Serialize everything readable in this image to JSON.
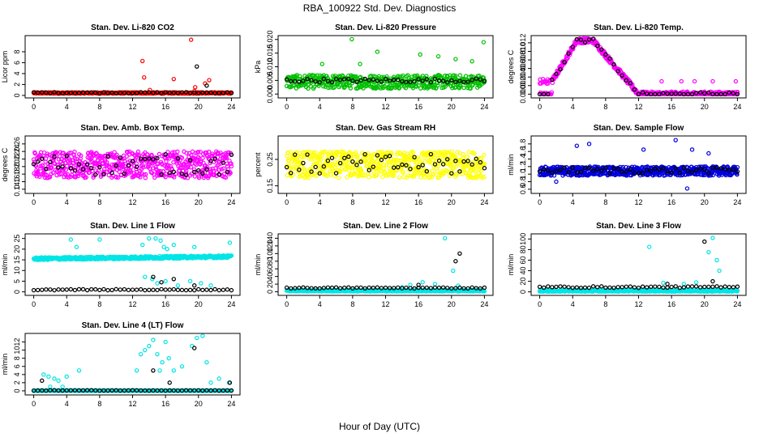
{
  "figure": {
    "title": "RBA_100922  Std. Dev. Diagnostics",
    "xlabel": "Hour of Day (UTC)"
  },
  "chart_data": [
    {
      "id": "co2",
      "type": "scatter",
      "title": "Stan. Dev. Li-820 CO2",
      "xlabel": "Hour of Day (UTC)",
      "ylabel": "Licor ppm",
      "xlim": [
        0,
        24
      ],
      "ylim": [
        0,
        10.5
      ],
      "xticks": [
        0,
        4,
        8,
        12,
        16,
        20,
        24
      ],
      "yticks": [
        0,
        2,
        4,
        6,
        8
      ],
      "ytick_labels": [
        "0",
        "2",
        "4",
        "6",
        "8"
      ],
      "series": [
        {
          "name": "detail",
          "color": "#ff0000",
          "kind": "cloud",
          "base": 0.45,
          "jitter": 0.12,
          "step": 0.05,
          "extra": [
            [
              13.2,
              6.3
            ],
            [
              13.4,
              3.3
            ],
            [
              17.0,
              3.0
            ],
            [
              19.1,
              10.2
            ],
            [
              19.6,
              1.5
            ],
            [
              19.5,
              0.8
            ],
            [
              20.8,
              2.2
            ],
            [
              21.3,
              2.8
            ],
            [
              14.1,
              1.0
            ]
          ]
        },
        {
          "name": "hourly",
          "color": "#000000",
          "kind": "line",
          "base": 0.5,
          "jitter": 0.1,
          "step": 0.5,
          "extra": [
            [
              19.8,
              5.3
            ],
            [
              21.0,
              1.8
            ]
          ]
        }
      ]
    },
    {
      "id": "pressure",
      "type": "scatter",
      "title": "Stan. Dev. Li-820 Pressure",
      "xlabel": "Hour of Day (UTC)",
      "ylabel": "kPa",
      "xlim": [
        0,
        24
      ],
      "ylim": [
        -0.0005,
        0.0205
      ],
      "xticks": [
        0,
        4,
        8,
        12,
        16,
        20,
        24
      ],
      "yticks": [
        0,
        0.005,
        0.01,
        0.015,
        0.02
      ],
      "ytick_labels": [
        "0.000",
        "0.005",
        "0.010",
        "0.015",
        "0.020"
      ],
      "series": [
        {
          "name": "detail",
          "color": "#00c000",
          "kind": "cloud",
          "base": 0.0045,
          "jitter": 0.0025,
          "step": 0.05,
          "extra": [
            [
              7.9,
              0.0201
            ],
            [
              23.9,
              0.019
            ],
            [
              11.0,
              0.0155
            ],
            [
              16.2,
              0.0145
            ],
            [
              18.4,
              0.0138
            ],
            [
              20.5,
              0.0128
            ],
            [
              22.5,
              0.012
            ],
            [
              8.9,
              0.011
            ],
            [
              4.3,
              0.011
            ]
          ]
        },
        {
          "name": "hourly",
          "color": "#000000",
          "kind": "line",
          "base": 0.005,
          "jitter": 0.0007,
          "step": 0.5,
          "extra": []
        }
      ]
    },
    {
      "id": "temp",
      "type": "scatter",
      "title": "Stan. Dev. Li-820 Temp.",
      "xlabel": "Hour of Day (UTC)",
      "ylabel": "degrees C",
      "xlim": [
        0,
        24
      ],
      "ylim": [
        -0.0003,
        0.0131
      ],
      "xticks": [
        0,
        4,
        8,
        12,
        16,
        20,
        24
      ],
      "yticks": [
        0,
        0.002,
        0.004,
        0.006,
        0.008,
        0.01,
        0.012
      ],
      "ytick_labels": [
        "0.000",
        "0.002",
        "0.004",
        "0.006",
        "0.008",
        "0.010",
        "0.012"
      ],
      "series": [
        {
          "name": "detail",
          "color": "#ff00ff",
          "kind": "temp",
          "base": 0.0,
          "jitter": 0.0006,
          "step": 0.05,
          "extra": [
            [
              14.8,
              0.003
            ],
            [
              17.2,
              0.003
            ],
            [
              18.8,
              0.003
            ],
            [
              21.0,
              0.003
            ],
            [
              23.8,
              0.003
            ]
          ]
        },
        {
          "name": "hourly",
          "color": "#000000",
          "kind": "temp",
          "base": 0.0,
          "jitter": 0.0004,
          "step": 0.5,
          "extra": []
        }
      ]
    },
    {
      "id": "ambbox",
      "type": "scatter",
      "title": "Stan. Dev. Amb. Box Temp.",
      "xlabel": "Hour of Day (UTC)",
      "ylabel": "degrees C",
      "xlim": [
        0,
        24
      ],
      "ylim": [
        0.135,
        0.275
      ],
      "xticks": [
        0,
        4,
        8,
        12,
        16,
        20,
        24
      ],
      "yticks": [
        0.14,
        0.16,
        0.18,
        0.2,
        0.22,
        0.24,
        0.26
      ],
      "ytick_labels": [
        "0.14",
        "0.16",
        "0.18",
        "0.20",
        "0.22",
        "0.24",
        "0.26"
      ],
      "series": [
        {
          "name": "detail",
          "color": "#ff00ff",
          "kind": "cloud",
          "base": 0.205,
          "jitter": 0.035,
          "step": 0.04,
          "extra": []
        },
        {
          "name": "hourly",
          "color": "#000000",
          "kind": "line",
          "base": 0.205,
          "jitter": 0.028,
          "step": 0.5,
          "extra": []
        }
      ]
    },
    {
      "id": "gasrh",
      "type": "scatter",
      "title": "Stan. Dev. Gas Stream RH",
      "xlabel": "Hour of Day (UTC)",
      "ylabel": "percent",
      "xlim": [
        0,
        24
      ],
      "ylim": [
        0.13,
        0.33
      ],
      "xticks": [
        0,
        4,
        8,
        12,
        16,
        20,
        24
      ],
      "yticks": [
        0.15,
        0.25
      ],
      "ytick_labels": [
        "0.15",
        "0.25"
      ],
      "series": [
        {
          "name": "detail",
          "color": "#ffff00",
          "kind": "cloud",
          "base": 0.23,
          "jitter": 0.05,
          "step": 0.04,
          "extra": []
        },
        {
          "name": "hourly",
          "color": "#000000",
          "kind": "line",
          "base": 0.23,
          "jitter": 0.04,
          "step": 0.5,
          "extra": []
        }
      ]
    },
    {
      "id": "sampleflow",
      "type": "scatter",
      "title": "Stan. Dev. Sample Flow",
      "xlabel": "Hour of Day (UTC)",
      "ylabel": "ml/min",
      "xlim": [
        0,
        24
      ],
      "ylim": [
        0.55,
        1.95
      ],
      "xticks": [
        0,
        4,
        8,
        12,
        16,
        20,
        24
      ],
      "yticks": [
        0.6,
        0.8,
        1.0,
        1.2,
        1.4,
        1.6,
        1.8
      ],
      "ytick_labels": [
        "0.6",
        "0.8",
        "1.0",
        "1.2",
        "1.4",
        "1.6",
        "1.8"
      ],
      "series": [
        {
          "name": "detail",
          "color": "#0000dd",
          "kind": "cloud",
          "base": 1.08,
          "jitter": 0.12,
          "step": 0.04,
          "extra": [
            [
              4.5,
              1.75
            ],
            [
              6.0,
              1.8
            ],
            [
              12.6,
              1.65
            ],
            [
              16.5,
              1.9
            ],
            [
              18.5,
              1.65
            ],
            [
              20.5,
              1.55
            ],
            [
              17.9,
              0.62
            ],
            [
              2.0,
              0.8
            ]
          ]
        },
        {
          "name": "hourly",
          "color": "#000000",
          "kind": "line",
          "base": 1.1,
          "jitter": 0.08,
          "step": 0.5,
          "extra": []
        }
      ]
    },
    {
      "id": "line1",
      "type": "scatter",
      "title": "Stan. Dev. Line 1 Flow",
      "xlabel": "Hour of Day (UTC)",
      "ylabel": "ml/min",
      "xlim": [
        0,
        24
      ],
      "ylim": [
        -0.5,
        26
      ],
      "xticks": [
        0,
        4,
        8,
        12,
        16,
        20,
        24
      ],
      "yticks": [
        0,
        5,
        10,
        15,
        20,
        25
      ],
      "ytick_labels": [
        "0",
        "5",
        "10",
        "15",
        "20",
        "25"
      ],
      "series": [
        {
          "name": "detail",
          "color": "#00e5e5",
          "kind": "band",
          "base": 15.5,
          "jitter": 0.6,
          "step": 0.05,
          "extra": [
            [
              4.5,
              24.5
            ],
            [
              8.0,
              24.5
            ],
            [
              13.2,
              22.0
            ],
            [
              14.0,
              25.0
            ],
            [
              14.8,
              25.0
            ],
            [
              15.4,
              24.0
            ],
            [
              15.8,
              21.0
            ],
            [
              16.2,
              20.0
            ],
            [
              17.0,
              22.0
            ],
            [
              19.5,
              21.0
            ],
            [
              23.8,
              23.0
            ],
            [
              5.2,
              21.0
            ],
            [
              14.4,
              6.0
            ],
            [
              15.0,
              4.0
            ],
            [
              16.0,
              5.0
            ],
            [
              19.0,
              5.0
            ],
            [
              20.3,
              4.0
            ],
            [
              13.5,
              7.0
            ],
            [
              17.5,
              3.0
            ],
            [
              21.5,
              3.0
            ]
          ]
        },
        {
          "name": "hourly",
          "color": "#000000",
          "kind": "line",
          "base": 1.0,
          "jitter": 0.25,
          "step": 0.5,
          "extra": [
            [
              14.5,
              7.0
            ],
            [
              15.5,
              4.5
            ],
            [
              17.0,
              6.0
            ],
            [
              19.5,
              3.0
            ]
          ]
        }
      ]
    },
    {
      "id": "line2",
      "type": "scatter",
      "title": "Stan. Dev. Line 2 Flow",
      "xlabel": "Hour of Day (UTC)",
      "ylabel": "ml/min",
      "xlim": [
        0,
        24
      ],
      "ylim": [
        -3,
        145
      ],
      "xticks": [
        0,
        4,
        8,
        12,
        16,
        20,
        24
      ],
      "yticks": [
        0,
        20,
        40,
        60,
        80,
        100,
        120,
        140
      ],
      "ytick_labels": [
        "0",
        "20",
        "40",
        "60",
        "80",
        "100",
        "120",
        "140"
      ],
      "series": [
        {
          "name": "detail",
          "color": "#00e5e5",
          "kind": "cloud",
          "base": 3.0,
          "jitter": 2.0,
          "step": 0.05,
          "extra": [
            [
              19.2,
              140
            ],
            [
              20.2,
              55
            ],
            [
              15.0,
              18
            ],
            [
              16.5,
              25
            ],
            [
              18.0,
              20
            ],
            [
              20.8,
              16
            ],
            [
              14.0,
              12
            ]
          ]
        },
        {
          "name": "hourly",
          "color": "#000000",
          "kind": "line",
          "base": 10.0,
          "jitter": 1.5,
          "step": 0.5,
          "extra": [
            [
              20.5,
              80
            ],
            [
              21.0,
              100
            ],
            [
              16.0,
              18
            ]
          ]
        }
      ]
    },
    {
      "id": "line3",
      "type": "scatter",
      "title": "Stan. Dev. Line 3 Flow",
      "xlabel": "Hour of Day (UTC)",
      "ylabel": "ml/min",
      "xlim": [
        0,
        24
      ],
      "ylim": [
        -2,
        105
      ],
      "xticks": [
        0,
        4,
        8,
        12,
        16,
        20,
        24
      ],
      "yticks": [
        0,
        20,
        40,
        60,
        80,
        100
      ],
      "ytick_labels": [
        "0",
        "20",
        "40",
        "60",
        "80",
        "100"
      ],
      "series": [
        {
          "name": "detail",
          "color": "#00e5e5",
          "kind": "cloud",
          "base": 2.0,
          "jitter": 1.5,
          "step": 0.05,
          "extra": [
            [
              13.3,
              85
            ],
            [
              21.0,
              102
            ],
            [
              21.5,
              60
            ],
            [
              21.8,
              40
            ],
            [
              20.5,
              75
            ],
            [
              15.0,
              17
            ],
            [
              17.5,
              15
            ],
            [
              19.0,
              18
            ]
          ]
        },
        {
          "name": "hourly",
          "color": "#000000",
          "kind": "line",
          "base": 9.0,
          "jitter": 1.5,
          "step": 0.5,
          "extra": [
            [
              20.0,
              95
            ],
            [
              21.0,
              20
            ],
            [
              15.5,
              15
            ]
          ]
        }
      ]
    },
    {
      "id": "line4",
      "type": "scatter",
      "title": "Stan. Dev. Line 4 (LT) Flow",
      "xlabel": "Hour of Day (UTC)",
      "ylabel": "ml/min",
      "xlim": [
        0,
        24
      ],
      "ylim": [
        -0.4,
        13.5
      ],
      "xticks": [
        0,
        4,
        8,
        12,
        16,
        20,
        24
      ],
      "yticks": [
        0,
        2,
        4,
        6,
        8,
        10,
        12
      ],
      "ytick_labels": [
        "0",
        "2",
        "4",
        "6",
        "8",
        "10",
        "12"
      ],
      "series": [
        {
          "name": "detail",
          "color": "#00e5e5",
          "kind": "lt",
          "base": 0.05,
          "jitter": 0.05,
          "step": 0.05,
          "extra": [
            [
              1.2,
              4.0
            ],
            [
              1.8,
              3.5
            ],
            [
              2.5,
              3.0
            ],
            [
              3.0,
              2.5
            ],
            [
              4.0,
              3.5
            ],
            [
              5.5,
              5.0
            ],
            [
              12.5,
              5.0
            ],
            [
              13.0,
              9.0
            ],
            [
              13.5,
              10.0
            ],
            [
              14.0,
              11.0
            ],
            [
              14.5,
              12.5
            ],
            [
              15.0,
              9.0
            ],
            [
              15.3,
              5.0
            ],
            [
              15.6,
              7.0
            ],
            [
              16.0,
              12.0
            ],
            [
              16.4,
              8.0
            ],
            [
              17.0,
              5.0
            ],
            [
              18.0,
              6.0
            ],
            [
              19.2,
              11.0
            ],
            [
              19.8,
              13.0
            ],
            [
              20.5,
              13.5
            ],
            [
              21.0,
              7.0
            ],
            [
              21.5,
              2.0
            ],
            [
              22.5,
              3.0
            ],
            [
              23.7,
              2.0
            ],
            [
              2.0,
              1.0
            ],
            [
              3.5,
              1.0
            ]
          ]
        },
        {
          "name": "hourly",
          "color": "#000000",
          "kind": "line",
          "base": 0.1,
          "jitter": 0.05,
          "step": 0.5,
          "extra": [
            [
              1.0,
              2.5
            ],
            [
              14.5,
              5.0
            ],
            [
              16.5,
              2.0
            ],
            [
              19.5,
              10.5
            ],
            [
              23.8,
              2.0
            ]
          ]
        }
      ]
    }
  ]
}
